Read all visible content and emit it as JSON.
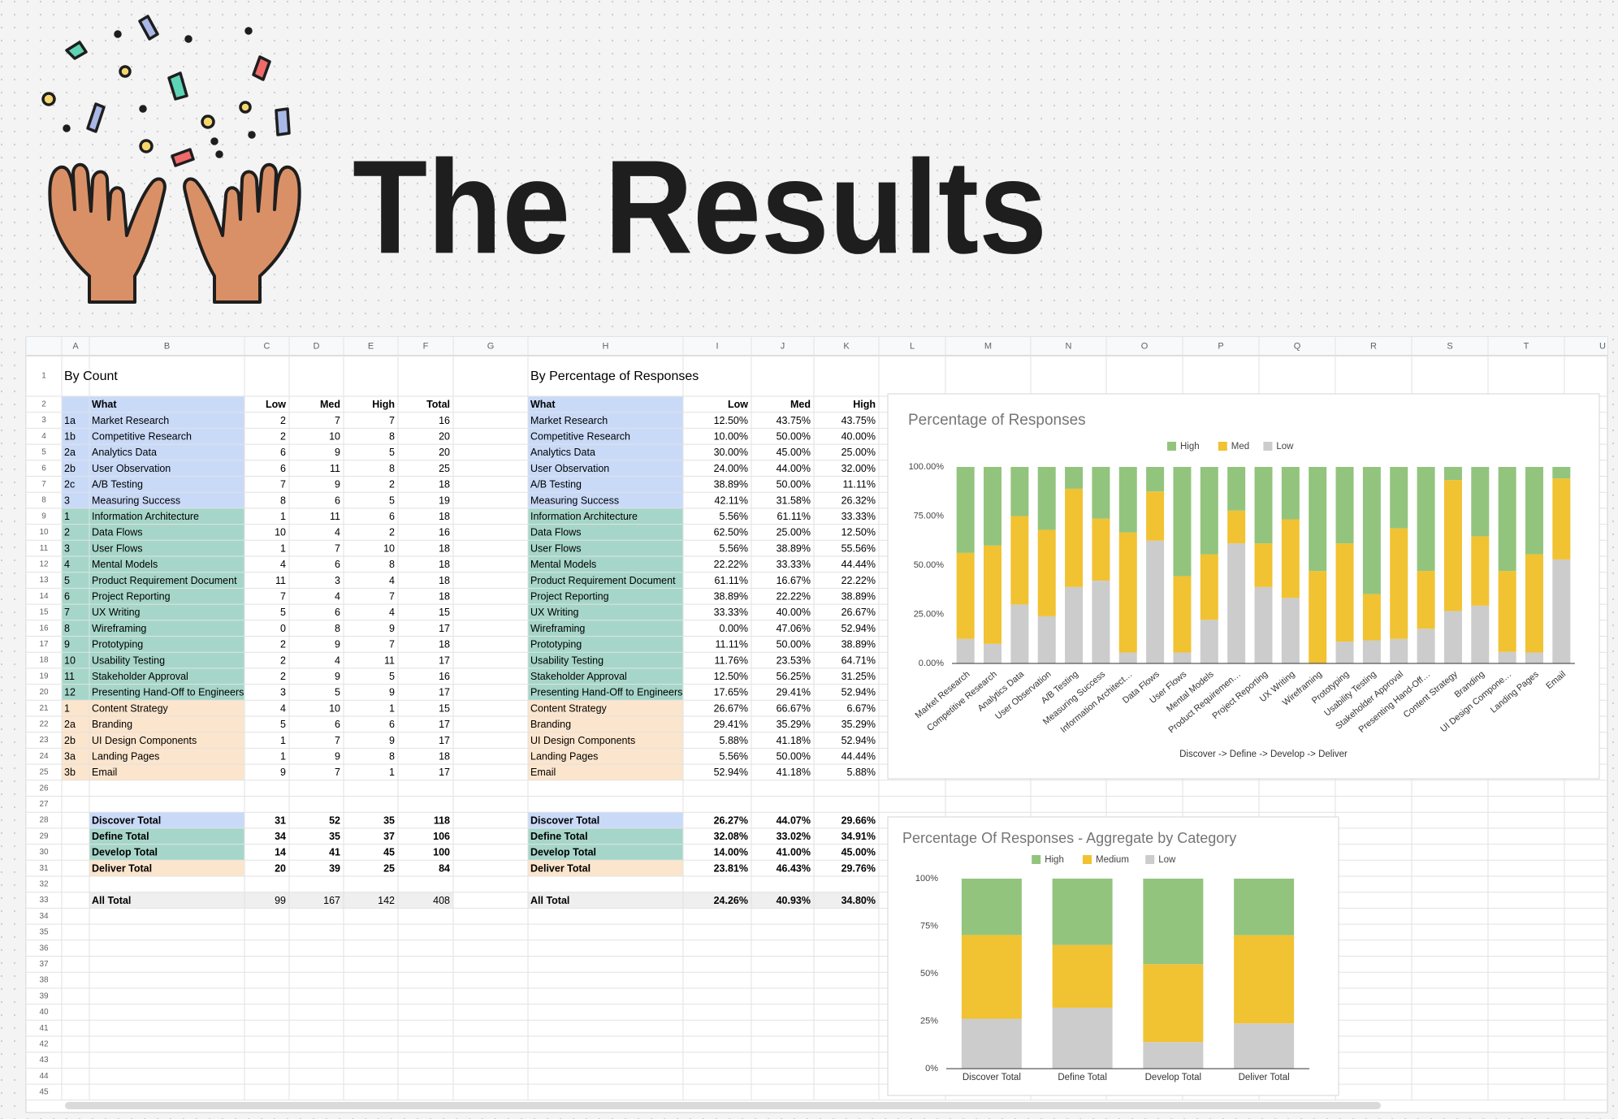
{
  "header": {
    "title": "The Results"
  },
  "sheet": {
    "columns": [
      "A",
      "B",
      "C",
      "D",
      "E",
      "F",
      "G",
      "H",
      "I",
      "J",
      "K",
      "L",
      "M",
      "N",
      "O",
      "P",
      "Q",
      "R",
      "S",
      "T",
      "U"
    ],
    "rows": [
      1,
      2,
      3,
      4,
      5,
      6,
      7,
      8,
      9,
      10,
      11,
      12,
      13,
      14,
      15,
      16,
      17,
      18,
      19,
      20,
      21,
      22,
      23,
      24,
      25,
      26,
      27,
      28,
      29,
      30,
      31,
      32,
      33,
      34,
      35,
      36,
      37,
      38,
      39,
      40,
      41,
      42,
      43,
      44,
      45
    ],
    "header_fill": "#c9daf8",
    "row_fills": [
      "#c9daf8",
      "#c9daf8",
      "#c9daf8",
      "#c9daf8",
      "#c9daf8",
      "#c9daf8",
      "#a6d6c9",
      "#a6d6c9",
      "#a6d6c9",
      "#a6d6c9",
      "#a6d6c9",
      "#a6d6c9",
      "#a6d6c9",
      "#a6d6c9",
      "#a6d6c9",
      "#a6d6c9",
      "#a6d6c9",
      "#a6d6c9",
      "#fce5cd",
      "#fce5cd",
      "#fce5cd",
      "#fce5cd",
      "#fce5cd"
    ],
    "total_fills": [
      "#c9daf8",
      "#a6d6c9",
      "#a6d6c9",
      "#fce5cd"
    ],
    "all_total_fill": "#efefef",
    "count_table": {
      "heading": "By Count",
      "header": [
        "What",
        "Low",
        "Med",
        "High",
        "Total"
      ],
      "rows": [
        [
          "1a",
          "Market Research",
          2,
          7,
          7,
          16
        ],
        [
          "1b",
          "Competitive Research",
          2,
          10,
          8,
          20
        ],
        [
          "2a",
          "Analytics Data",
          6,
          9,
          5,
          20
        ],
        [
          "2b",
          "User Observation",
          6,
          11,
          8,
          25
        ],
        [
          "2c",
          "A/B Testing",
          7,
          9,
          2,
          18
        ],
        [
          "3",
          "Measuring Success",
          8,
          6,
          5,
          19
        ],
        [
          "1",
          "Information Architecture",
          1,
          11,
          6,
          18
        ],
        [
          "2",
          "Data Flows",
          10,
          4,
          2,
          16
        ],
        [
          "3",
          "User Flows",
          1,
          7,
          10,
          18
        ],
        [
          "4",
          "Mental Models",
          4,
          6,
          8,
          18
        ],
        [
          "5",
          "Product Requirement Document",
          11,
          3,
          4,
          18
        ],
        [
          "6",
          "Project Reporting",
          7,
          4,
          7,
          18
        ],
        [
          "7",
          "UX Writing",
          5,
          6,
          4,
          15
        ],
        [
          "8",
          "Wireframing",
          0,
          8,
          9,
          17
        ],
        [
          "9",
          "Prototyping",
          2,
          9,
          7,
          18
        ],
        [
          "10",
          "Usability Testing",
          2,
          4,
          11,
          17
        ],
        [
          "11",
          "Stakeholder Approval",
          2,
          9,
          5,
          16
        ],
        [
          "12",
          "Presenting Hand-Off to Engineers",
          3,
          5,
          9,
          17
        ],
        [
          "1",
          "Content Strategy",
          4,
          10,
          1,
          15
        ],
        [
          "2a",
          "Branding",
          5,
          6,
          6,
          17
        ],
        [
          "2b",
          "UI Design Components",
          1,
          7,
          9,
          17
        ],
        [
          "3a",
          "Landing Pages",
          1,
          9,
          8,
          18
        ],
        [
          "3b",
          "Email",
          9,
          7,
          1,
          17
        ]
      ],
      "totals": [
        [
          "Discover Total",
          31,
          52,
          35,
          118
        ],
        [
          "Define Total",
          34,
          35,
          37,
          106
        ],
        [
          "Develop Total",
          14,
          41,
          45,
          100
        ],
        [
          "Deliver Total",
          20,
          39,
          25,
          84
        ]
      ],
      "all_total": [
        "All Total",
        99,
        167,
        142,
        408
      ]
    },
    "percent_table": {
      "heading": "By Percentage of Responses",
      "header": [
        "What",
        "Low",
        "Med",
        "High"
      ],
      "rows": [
        [
          "Market Research",
          "12.50%",
          "43.75%",
          "43.75%"
        ],
        [
          "Competitive Research",
          "10.00%",
          "50.00%",
          "40.00%"
        ],
        [
          "Analytics Data",
          "30.00%",
          "45.00%",
          "25.00%"
        ],
        [
          "User Observation",
          "24.00%",
          "44.00%",
          "32.00%"
        ],
        [
          "A/B Testing",
          "38.89%",
          "50.00%",
          "11.11%"
        ],
        [
          "Measuring Success",
          "42.11%",
          "31.58%",
          "26.32%"
        ],
        [
          "Information Architecture",
          "5.56%",
          "61.11%",
          "33.33%"
        ],
        [
          "Data Flows",
          "62.50%",
          "25.00%",
          "12.50%"
        ],
        [
          "User Flows",
          "5.56%",
          "38.89%",
          "55.56%"
        ],
        [
          "Mental Models",
          "22.22%",
          "33.33%",
          "44.44%"
        ],
        [
          "Product Requirement Document",
          "61.11%",
          "16.67%",
          "22.22%"
        ],
        [
          "Project Reporting",
          "38.89%",
          "22.22%",
          "38.89%"
        ],
        [
          "UX Writing",
          "33.33%",
          "40.00%",
          "26.67%"
        ],
        [
          "Wireframing",
          "0.00%",
          "47.06%",
          "52.94%"
        ],
        [
          "Prototyping",
          "11.11%",
          "50.00%",
          "38.89%"
        ],
        [
          "Usability Testing",
          "11.76%",
          "23.53%",
          "64.71%"
        ],
        [
          "Stakeholder Approval",
          "12.50%",
          "56.25%",
          "31.25%"
        ],
        [
          "Presenting Hand-Off to Engineers",
          "17.65%",
          "29.41%",
          "52.94%"
        ],
        [
          "Content Strategy",
          "26.67%",
          "66.67%",
          "6.67%"
        ],
        [
          "Branding",
          "29.41%",
          "35.29%",
          "35.29%"
        ],
        [
          "UI Design Components",
          "5.88%",
          "41.18%",
          "52.94%"
        ],
        [
          "Landing Pages",
          "5.56%",
          "50.00%",
          "44.44%"
        ],
        [
          "Email",
          "52.94%",
          "41.18%",
          "5.88%"
        ]
      ],
      "totals": [
        [
          "Discover Total",
          "26.27%",
          "44.07%",
          "29.66%"
        ],
        [
          "Define Total",
          "32.08%",
          "33.02%",
          "34.91%"
        ],
        [
          "Develop Total",
          "14.00%",
          "41.00%",
          "45.00%"
        ],
        [
          "Deliver Total",
          "23.81%",
          "46.43%",
          "29.76%"
        ]
      ],
      "all_total": [
        "All Total",
        "24.26%",
        "40.93%",
        "34.80%"
      ]
    }
  },
  "chart_data": [
    {
      "type": "bar",
      "stacked": true,
      "title": "Percentage of Responses",
      "x_label": "Discover -> Define -> Develop -> Deliver",
      "legend": "top",
      "grid": false,
      "categories": [
        "Market Research",
        "Competitive Research",
        "Analytics Data",
        "User Observation",
        "A/B Testing",
        "Measuring Success",
        "Information Architect…",
        "Data Flows",
        "User Flows",
        "Mental Models",
        "Product Requiremen…",
        "Project Reporting",
        "UX Writing",
        "Wireframing",
        "Prototyping",
        "Usability Testing",
        "Stakeholder Approval",
        "Presenting Hand-Off…",
        "Content Strategy",
        "Branding",
        "UI Design Compone…",
        "Landing Pages",
        "Email"
      ],
      "series": [
        {
          "name": "High",
          "color": "#93c47d",
          "values": [
            43.75,
            40,
            25,
            32,
            11.11,
            26.32,
            33.33,
            12.5,
            55.56,
            44.44,
            22.22,
            38.89,
            26.67,
            52.94,
            38.89,
            64.71,
            31.25,
            52.94,
            6.67,
            35.29,
            52.94,
            44.44,
            5.88
          ]
        },
        {
          "name": "Med",
          "color": "#f1c232",
          "values": [
            43.75,
            50,
            45,
            44,
            50,
            31.58,
            61.11,
            25,
            38.89,
            33.33,
            16.67,
            22.22,
            40,
            47.06,
            50,
            23.53,
            56.25,
            29.41,
            66.67,
            35.29,
            41.18,
            50,
            41.18
          ]
        },
        {
          "name": "Low",
          "color": "#cccccc",
          "values": [
            12.5,
            10,
            30,
            24,
            38.89,
            42.11,
            5.56,
            62.5,
            5.56,
            22.22,
            61.11,
            38.89,
            33.33,
            0,
            11.11,
            11.76,
            12.5,
            17.65,
            26.67,
            29.41,
            5.88,
            5.56,
            52.94
          ]
        }
      ],
      "ylim": [
        0,
        100
      ],
      "yticks": [
        {
          "value": 0,
          "label": "0.00%"
        },
        {
          "value": 25,
          "label": "25.00%"
        },
        {
          "value": 50,
          "label": "50.00%"
        },
        {
          "value": 75,
          "label": "75.00%"
        },
        {
          "value": 100,
          "label": "100.00%"
        }
      ]
    },
    {
      "type": "bar",
      "stacked": true,
      "title": "Percentage Of Responses - Aggregate by Category",
      "legend": "top",
      "grid": false,
      "categories": [
        "Discover Total",
        "Define Total",
        "Develop Total",
        "Deliver Total"
      ],
      "series": [
        {
          "name": "High",
          "color": "#93c47d",
          "values": [
            29.66,
            34.91,
            45,
            29.76
          ]
        },
        {
          "name": "Medium",
          "color": "#f1c232",
          "values": [
            44.07,
            33.02,
            41,
            46.43
          ]
        },
        {
          "name": "Low",
          "color": "#cccccc",
          "values": [
            26.27,
            32.08,
            14,
            23.81
          ]
        }
      ],
      "ylim": [
        0,
        100
      ],
      "yticks": [
        {
          "value": 0,
          "label": "0%"
        },
        {
          "value": 25,
          "label": "25%"
        },
        {
          "value": 50,
          "label": "50%"
        },
        {
          "value": 75,
          "label": "75%"
        },
        {
          "value": 100,
          "label": "100%"
        }
      ]
    }
  ]
}
